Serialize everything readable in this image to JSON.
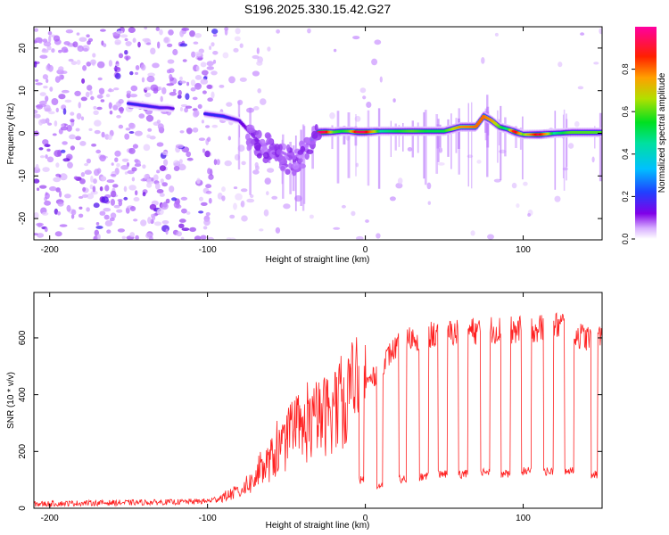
{
  "figure_title": "S196.2025.330.15.42.G27",
  "chart_data": [
    {
      "type": "heatmap",
      "title": "S196.2025.330.15.42.G27",
      "xlabel": "Height of straight line (km)",
      "ylabel": "Frequency (Hz)",
      "xlim": [
        -210,
        150
      ],
      "ylim": [
        -25,
        25
      ],
      "x_ticks": [
        -200,
        -100,
        0,
        100
      ],
      "y_ticks": [
        -20,
        -10,
        0,
        10,
        20
      ],
      "x_tick_labels": [
        "-200",
        "-100",
        "0",
        "100"
      ],
      "y_tick_labels": [
        "-20",
        "-10",
        "0",
        "10",
        "20"
      ],
      "colorbar": {
        "label": "Normalized spectral amplitude",
        "range": [
          0,
          1
        ],
        "ticks": [
          0.0,
          0.2,
          0.4,
          0.6,
          0.8
        ],
        "tick_labels": [
          "0.0",
          "0.2",
          "0.4",
          "0.6",
          "0.8"
        ],
        "colors": [
          "#ffffff",
          "#c080ff",
          "#7000e0",
          "#2030ff",
          "#00e0ff",
          "#00e040",
          "#c0e000",
          "#ff8000",
          "#ff0000",
          "#ff00a0"
        ]
      },
      "ridge": {
        "x": [
          -150,
          -140,
          -130,
          -125,
          -100,
          -90,
          -80,
          -75,
          -70,
          -65,
          -60,
          -55,
          -50,
          -45,
          -40,
          -35,
          -30,
          -25,
          -20,
          -15,
          -10,
          -5,
          0,
          10,
          20,
          30,
          40,
          50,
          60,
          70,
          75,
          80,
          85,
          90,
          95,
          100,
          110,
          120,
          130,
          140,
          150
        ],
        "y": [
          7,
          6.5,
          6,
          6,
          4.5,
          4,
          3,
          1,
          -1,
          -3,
          -2,
          -4,
          -5,
          -6,
          -4,
          -2,
          0.2,
          0.3,
          0.3,
          0.5,
          0.5,
          0.3,
          0.3,
          0.5,
          0.5,
          0.5,
          0.5,
          0.5,
          1.5,
          1.5,
          4,
          3,
          1.5,
          1,
          0.3,
          -0.3,
          -0.3,
          0,
          0.2,
          0.2,
          0.2
        ],
        "amplitude": [
          0.3,
          0.3,
          0.28,
          0.25,
          0.3,
          0.32,
          0.25,
          0.2,
          0.18,
          0.15,
          0.15,
          0.13,
          0.13,
          0.12,
          0.13,
          0.2,
          0.95,
          0.95,
          0.6,
          0.55,
          0.6,
          0.95,
          0.95,
          0.5,
          0.55,
          0.6,
          0.55,
          0.55,
          0.75,
          0.8,
          0.8,
          0.75,
          0.6,
          0.5,
          0.95,
          0.6,
          0.95,
          0.5,
          0.6,
          0.6,
          0.6
        ]
      },
      "background": "purple scatter noise at low heights (< -95 km), sparse at higher heights"
    },
    {
      "type": "line",
      "title": "",
      "xlabel": "Height of straight line (km)",
      "ylabel": "SNR (10 * v/v)",
      "xlim": [
        -210,
        150
      ],
      "ylim": [
        0,
        760
      ],
      "x_ticks": [
        -200,
        -100,
        0,
        100
      ],
      "y_ticks": [
        0,
        200,
        400,
        600
      ],
      "x_tick_labels": [
        "-200",
        "-100",
        "0",
        "100"
      ],
      "y_tick_labels": [
        "0",
        "200",
        "400",
        "600"
      ],
      "series": [
        {
          "name": "SNR",
          "color": "#ff2020",
          "x": [
            -210,
            -180,
            -150,
            -120,
            -100,
            -90,
            -80,
            -70,
            -60,
            -50,
            -40,
            -30,
            -20,
            -10,
            -5,
            0,
            5,
            10,
            15,
            20,
            25,
            30,
            40,
            50,
            60,
            70,
            80,
            90,
            100,
            110,
            120,
            125,
            130,
            140,
            150
          ],
          "values": [
            15,
            18,
            20,
            22,
            25,
            40,
            60,
            100,
            170,
            230,
            270,
            310,
            350,
            400,
            420,
            440,
            460,
            500,
            540,
            570,
            590,
            600,
            610,
            615,
            620,
            625,
            630,
            625,
            630,
            635,
            640,
            650,
            620,
            600,
            600
          ]
        }
      ],
      "dropouts": {
        "x_start": [
          -4,
          7,
          21,
          34,
          46,
          59,
          73,
          86,
          99,
          113,
          126,
          143
        ],
        "x_end": [
          -1,
          11,
          26,
          40,
          52,
          65,
          79,
          92,
          105,
          119,
          132,
          147
        ],
        "floor": [
          100,
          80,
          100,
          110,
          120,
          120,
          130,
          120,
          130,
          130,
          130,
          120
        ]
      }
    }
  ]
}
